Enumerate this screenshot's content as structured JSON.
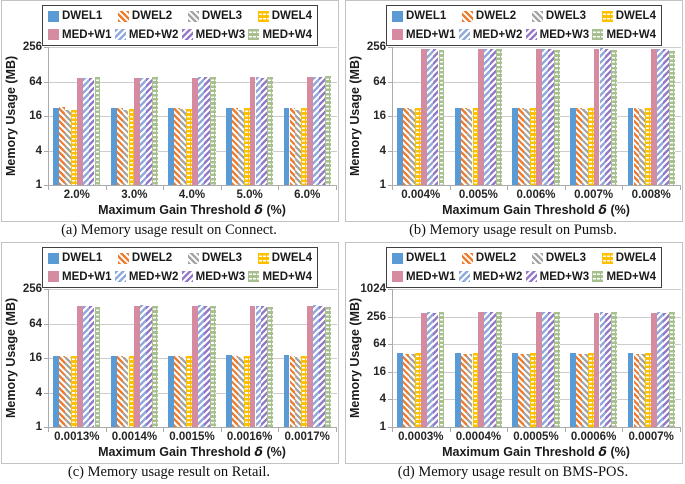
{
  "chart_data": {
    "figure_type": "2x2 grid of grouped bar charts (log y-scale)",
    "shared": {
      "type": "bar",
      "yscale": "log",
      "grid": true,
      "legend_position": "top",
      "ylabel": "Memory Usage (MB)",
      "xlabel": "Maximum Gain Threshold δ (%)",
      "xlabel_parts": {
        "pre": "Maximum Gain Threshold ",
        "delta": "δ",
        "post": " (%)"
      },
      "series_styles": [
        {
          "name": "DWEL1",
          "color": "#5B9BD5",
          "pattern": "solid"
        },
        {
          "name": "DWEL2",
          "color": "#ED7D31",
          "pattern": "diag"
        },
        {
          "name": "DWEL3",
          "color": "#A5A5A5",
          "pattern": "diag"
        },
        {
          "name": "DWEL4",
          "color": "#FFC000",
          "pattern": "hdash"
        },
        {
          "name": "MED+W1",
          "color": "#D68CA0",
          "pattern": "solid"
        },
        {
          "name": "MED+W2",
          "color": "#8FAADC",
          "pattern": "diag2"
        },
        {
          "name": "MED+W3",
          "color": "#9678C8",
          "pattern": "diag2"
        },
        {
          "name": "MED+W4",
          "color": "#A8BF8F",
          "pattern": "hdash"
        }
      ]
    },
    "charts": [
      {
        "id": "a",
        "caption": "(a) Memory usage result on Connect.",
        "categories": [
          "2.0%",
          "3.0%",
          "4.0%",
          "5.0%",
          "6.0%"
        ],
        "yticks": [
          1,
          4,
          16,
          64,
          256
        ],
        "ylim": [
          1,
          256
        ],
        "series": [
          {
            "name": "DWEL1",
            "values": [
              22,
              22,
              22,
              22,
              22
            ]
          },
          {
            "name": "DWEL2",
            "values": [
              23,
              22,
              22,
              22,
              22
            ]
          },
          {
            "name": "DWEL3",
            "values": [
              20,
              20,
              21,
              20,
              20
            ]
          },
          {
            "name": "DWEL4",
            "values": [
              20,
              21,
              21,
              22,
              22
            ]
          },
          {
            "name": "MED+W1",
            "values": [
              75,
              73,
              73,
              76,
              76
            ]
          },
          {
            "name": "MED+W2",
            "values": [
              75,
              75,
              76,
              76,
              78
            ]
          },
          {
            "name": "MED+W3",
            "values": [
              74,
              75,
              76,
              75,
              78
            ]
          },
          {
            "name": "MED+W4",
            "values": [
              76,
              76,
              76,
              78,
              80
            ]
          }
        ]
      },
      {
        "id": "b",
        "caption": "(b) Memory usage result on Pumsb.",
        "categories": [
          "0.004%",
          "0.005%",
          "0.006%",
          "0.007%",
          "0.008%"
        ],
        "yticks": [
          1,
          4,
          16,
          64,
          256
        ],
        "ylim": [
          1,
          256
        ],
        "series": [
          {
            "name": "DWEL1",
            "values": [
              22,
              22,
              22,
              22,
              22
            ]
          },
          {
            "name": "DWEL2",
            "values": [
              22,
              22,
              22,
              22,
              22
            ]
          },
          {
            "name": "DWEL3",
            "values": [
              21,
              21,
              21,
              21,
              21
            ]
          },
          {
            "name": "DWEL4",
            "values": [
              22,
              22,
              22,
              22,
              22
            ]
          },
          {
            "name": "MED+W1",
            "values": [
              235,
              235,
              235,
              235,
              235
            ]
          },
          {
            "name": "MED+W2",
            "values": [
              240,
              240,
              240,
              245,
              240
            ]
          },
          {
            "name": "MED+W3",
            "values": [
              235,
              238,
              238,
              240,
              235
            ]
          },
          {
            "name": "MED+W4",
            "values": [
              228,
              232,
              228,
              228,
              222
            ]
          }
        ]
      },
      {
        "id": "c",
        "caption": "(c) Memory usage result on Retail.",
        "categories": [
          "0.0013%",
          "0.0014%",
          "0.0015%",
          "0.0016%",
          "0.0017%"
        ],
        "yticks": [
          1,
          4,
          16,
          64,
          256
        ],
        "ylim": [
          1,
          256
        ],
        "series": [
          {
            "name": "DWEL1",
            "values": [
              17.5,
              17.5,
              17.5,
              18,
              18
            ]
          },
          {
            "name": "DWEL2",
            "values": [
              17,
              17,
              17,
              17,
              17
            ]
          },
          {
            "name": "DWEL3",
            "values": [
              16.5,
              16.5,
              16.5,
              16.5,
              16.5
            ]
          },
          {
            "name": "DWEL4",
            "values": [
              17,
              17,
              17,
              17,
              17
            ]
          },
          {
            "name": "MED+W1",
            "values": [
              130,
              130,
              130,
              130,
              130
            ]
          },
          {
            "name": "MED+W2",
            "values": [
              130,
              132,
              132,
              130,
              132
            ]
          },
          {
            "name": "MED+W3",
            "values": [
              128,
              130,
              130,
              128,
              130
            ]
          },
          {
            "name": "MED+W4",
            "values": [
              126,
              128,
              128,
              126,
              126
            ]
          }
        ]
      },
      {
        "id": "d",
        "caption": "(d) Memory usage result on BMS-POS.",
        "categories": [
          "0.0003%",
          "0.0004%",
          "0.0005%",
          "0.0006%",
          "0.0007%"
        ],
        "yticks": [
          1,
          4,
          16,
          64,
          256,
          1024
        ],
        "ylim": [
          1,
          1024
        ],
        "series": [
          {
            "name": "DWEL1",
            "values": [
              42,
              42,
              42,
              42,
              42
            ]
          },
          {
            "name": "DWEL2",
            "values": [
              40,
              40,
              40,
              40,
              40
            ]
          },
          {
            "name": "DWEL3",
            "values": [
              40,
              40,
              40,
              40,
              40
            ]
          },
          {
            "name": "DWEL4",
            "values": [
              41,
              41,
              41,
              41,
              41
            ]
          },
          {
            "name": "MED+W1",
            "values": [
              310,
              315,
              315,
              310,
              310
            ]
          },
          {
            "name": "MED+W2",
            "values": [
              315,
              315,
              320,
              315,
              315
            ]
          },
          {
            "name": "MED+W3",
            "values": [
              310,
              315,
              315,
              310,
              310
            ]
          },
          {
            "name": "MED+W4",
            "values": [
              315,
              318,
              320,
              315,
              318
            ]
          }
        ]
      }
    ]
  }
}
